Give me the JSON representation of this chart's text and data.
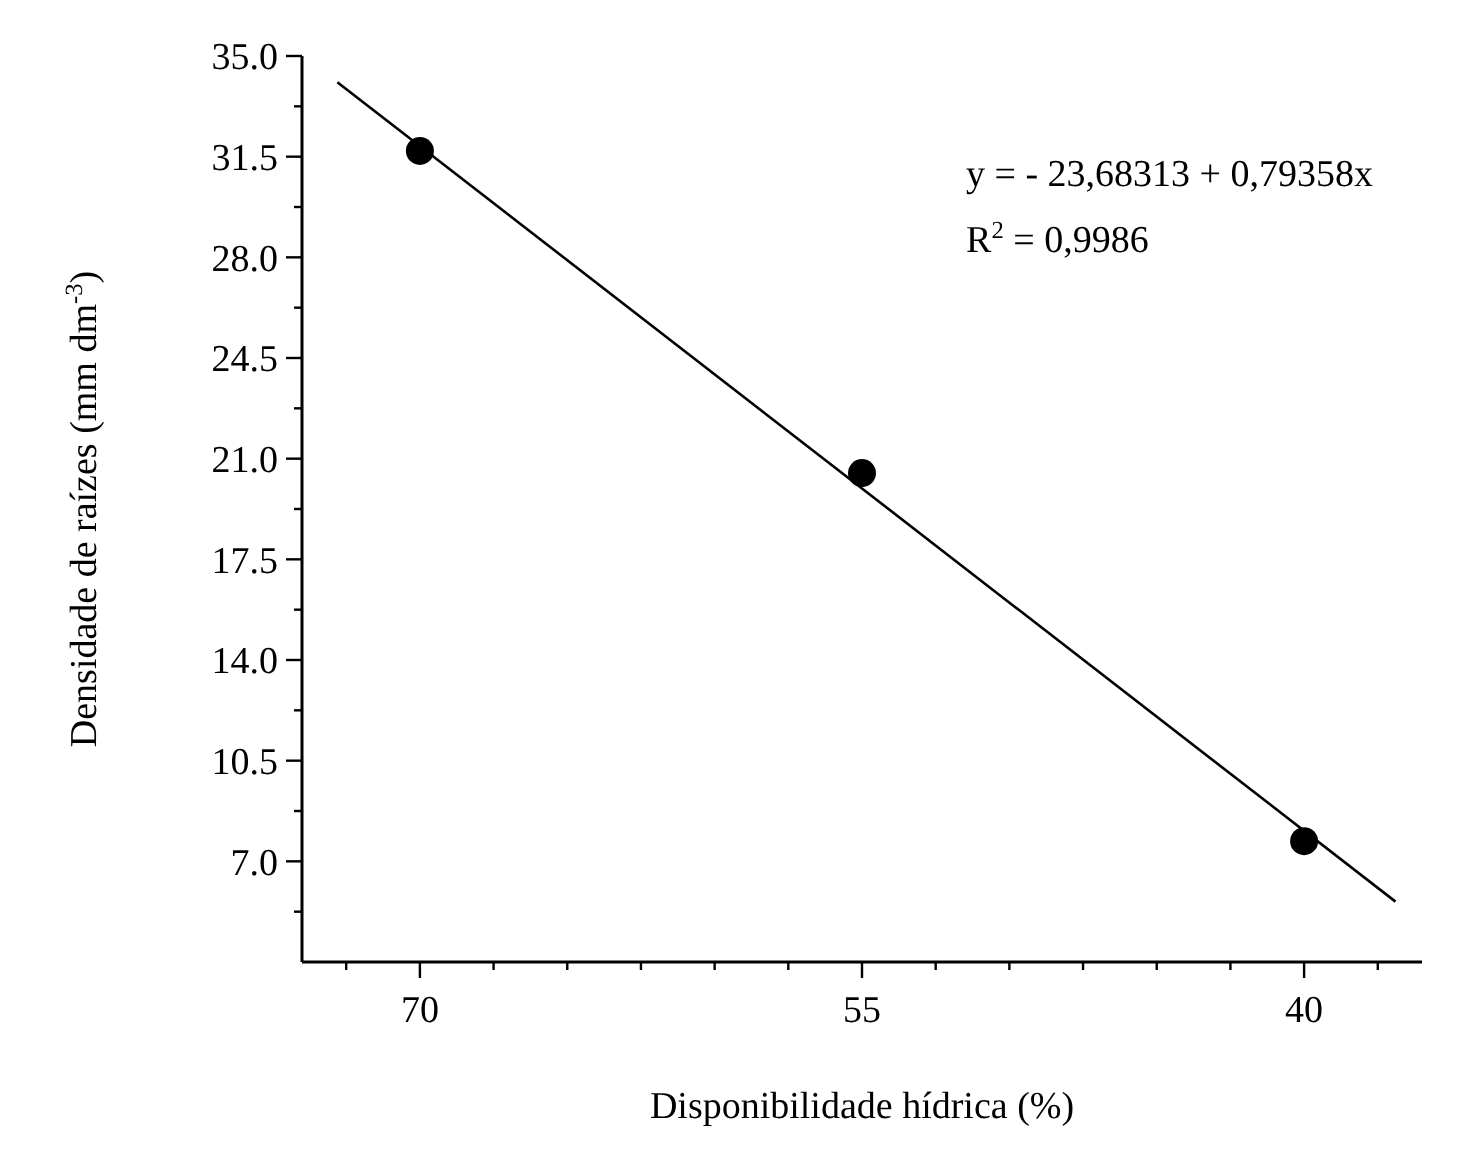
{
  "chart_data": {
    "type": "scatter",
    "xlabel": "Disponibilidade hídrica (%)",
    "ylabel": "Densidade de raízes (mm dm$^{-3}$)",
    "annotations": [
      "y = - 23,68313 + 0,79358x",
      "R$^{2}$ = 0,9986"
    ],
    "xlim": [
      74,
      36
    ],
    "ylim": [
      3.5,
      35
    ],
    "xticks": [
      {
        "value": 72.5,
        "label": null
      },
      70,
      {
        "value": 67.5,
        "label": null
      },
      {
        "value": 65,
        "label": null
      },
      {
        "value": 62.5,
        "label": null
      },
      {
        "value": 60,
        "label": null
      },
      {
        "value": 57.5,
        "label": null
      },
      55,
      {
        "value": 52.5,
        "label": null
      },
      {
        "value": 50,
        "label": null
      },
      {
        "value": 47.5,
        "label": null
      },
      {
        "value": 45,
        "label": null
      },
      {
        "value": 42.5,
        "label": null
      },
      40,
      {
        "value": 37.5,
        "label": null
      }
    ],
    "yticks": [
      {
        "value": 5.25,
        "label": null
      },
      {
        "value": 7,
        "label": "7.0"
      },
      {
        "value": 8.75,
        "label": null
      },
      {
        "value": 10.5,
        "label": "10.5"
      },
      {
        "value": 12.25,
        "label": null
      },
      {
        "value": 14,
        "label": "14.0"
      },
      {
        "value": 15.75,
        "label": null
      },
      {
        "value": 17.5,
        "label": "17.5"
      },
      {
        "value": 19.25,
        "label": null
      },
      {
        "value": 21,
        "label": "21.0"
      },
      {
        "value": 22.75,
        "label": null
      },
      {
        "value": 24.5,
        "label": "24.5"
      },
      {
        "value": 26.25,
        "label": null
      },
      {
        "value": 28,
        "label": "28.0"
      },
      {
        "value": 29.75,
        "label": null
      },
      {
        "value": 31.5,
        "label": "31.5"
      },
      {
        "value": 33.25,
        "label": null
      },
      {
        "value": 35,
        "label": "35.0"
      }
    ],
    "grid": false,
    "marker": "circle",
    "series": [
      {
        "color": "#000000",
        "x": [
          70,
          55,
          40
        ],
        "values": [
          31.7,
          20.5,
          7.7
        ]
      },
      {
        "type": "line",
        "color": "#000000",
        "marker": "none",
        "line_style": "solid",
        "x": [
          72.8,
          36.9
        ],
        "values": [
          34.09,
          5.6
        ]
      }
    ]
  }
}
